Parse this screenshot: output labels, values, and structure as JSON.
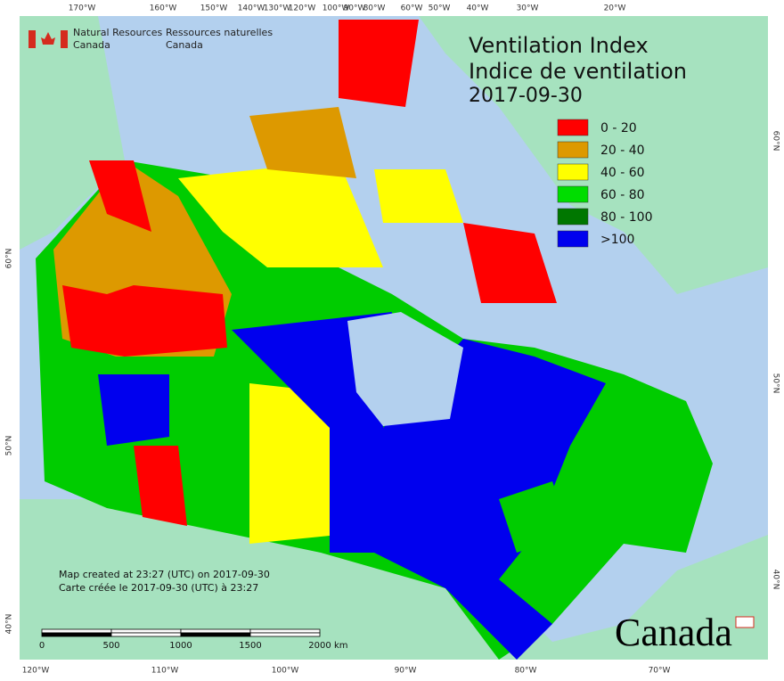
{
  "header": {
    "agency_en": "Natural Resources",
    "agency_en2": "Canada",
    "agency_fr": "Ressources naturelles",
    "agency_fr2": "Canada"
  },
  "title": {
    "line1": "Ventilation Index",
    "line2": "Indice de ventilation",
    "date": "2017-09-30"
  },
  "legend": [
    {
      "label": "0 - 20",
      "color": "#ff0000"
    },
    {
      "label": "20 - 40",
      "color": "#dd9900"
    },
    {
      "label": "40 - 60",
      "color": "#ffff00"
    },
    {
      "label": "60 - 80",
      "color": "#00dd00"
    },
    {
      "label": "80 - 100",
      "color": "#007700"
    },
    {
      "label": ">100",
      "color": "#0000ee"
    }
  ],
  "graticule": {
    "top": [
      "170°W",
      "160°W",
      "150°W",
      "140°W",
      "130°W",
      "120°W",
      "100°W",
      "90°W",
      "80°W",
      "60°W",
      "50°W",
      "40°W",
      "30°W",
      "20°W"
    ],
    "bottom": [
      "120°W",
      "110°W",
      "100°W",
      "90°W",
      "80°W",
      "70°W"
    ],
    "left": [
      "60°N",
      "50°N",
      "40°N"
    ],
    "right": [
      "60°N",
      "50°N",
      "40°N"
    ]
  },
  "scale": {
    "labels": [
      "0",
      "500",
      "1000",
      "1500",
      "2000"
    ],
    "unit": "km"
  },
  "notes": {
    "created_en": "Map created at 23:27 (UTC) on 2017-09-30",
    "created_fr": "Carte créée le 2017-09-30 (UTC) à 23:27"
  },
  "wordmark": "Canada"
}
